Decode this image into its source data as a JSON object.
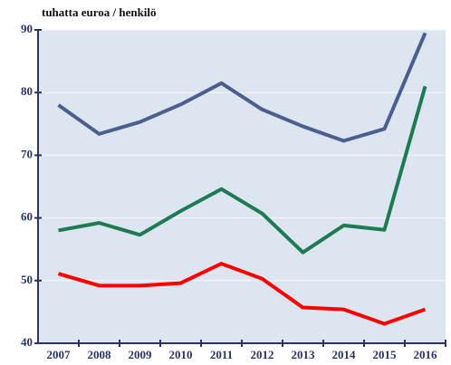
{
  "chart_data": {
    "type": "line",
    "y_axis_label": "tuhatta euroa / henkilö",
    "categories": [
      "2007",
      "2008",
      "2009",
      "2010",
      "2011",
      "2012",
      "2013",
      "2014",
      "2015",
      "2016"
    ],
    "series": [
      {
        "color": "#4a5f8e",
        "values": [
          78,
          73.4,
          75.3,
          78.1,
          81.5,
          77.3,
          74.6,
          72.3,
          74.2,
          89.5
        ]
      },
      {
        "color": "#1e7a52",
        "values": [
          58,
          59.2,
          57.3,
          61.1,
          64.6,
          60.7,
          54.5,
          58.8,
          58.1,
          81
        ]
      },
      {
        "color": "#ff0000",
        "values": [
          51.1,
          49.2,
          49.2,
          49.6,
          52.7,
          50.3,
          45.7,
          45.4,
          43.1,
          45.4
        ]
      }
    ],
    "ylim": [
      40,
      90
    ],
    "yticks": [
      40,
      50,
      60,
      70,
      80,
      90
    ],
    "grid": true
  }
}
